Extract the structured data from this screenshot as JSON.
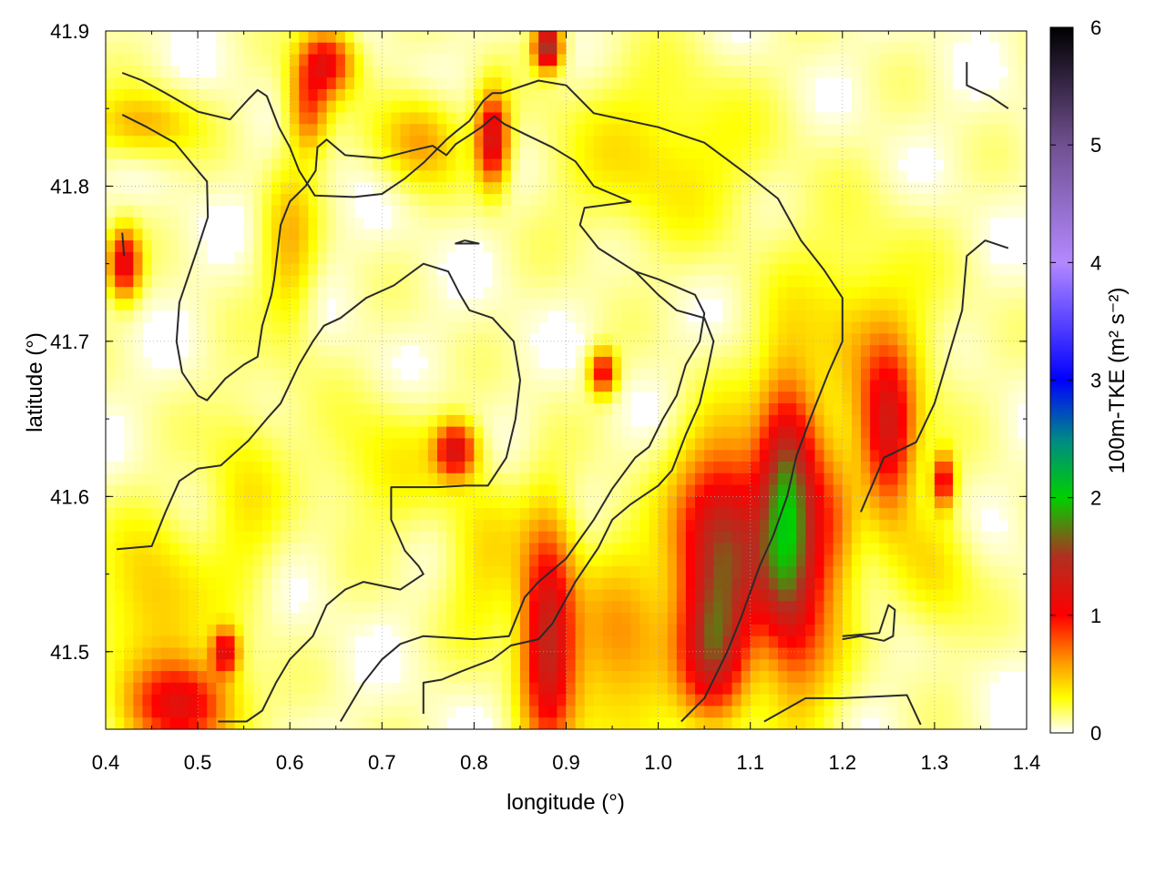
{
  "chart_data": {
    "type": "heatmap",
    "xlabel": "longitude (°)",
    "ylabel": "latitude (°)",
    "xlim": [
      0.4,
      1.4
    ],
    "ylim": [
      41.45,
      41.9
    ],
    "xticks": [
      "0.4",
      "0.5",
      "0.6",
      "0.7",
      "0.8",
      "0.9",
      "1.0",
      "1.1",
      "1.2",
      "1.3",
      "1.4"
    ],
    "yticks": [
      "41.5",
      "41.6",
      "41.7",
      "41.8",
      "41.9"
    ],
    "colorbar": {
      "label": "100m-TKE (m² s⁻²)",
      "range": [
        0,
        6
      ],
      "ticks": [
        "0",
        "1",
        "2",
        "3",
        "4",
        "5",
        "6"
      ],
      "stops": [
        {
          "v": 0.0,
          "color": "#ffffff"
        },
        {
          "v": 0.3,
          "color": "#ffff00"
        },
        {
          "v": 0.6,
          "color": "#ff9900"
        },
        {
          "v": 1.0,
          "color": "#ff0000"
        },
        {
          "v": 1.5,
          "color": "#b03020"
        },
        {
          "v": 2.0,
          "color": "#00d000"
        },
        {
          "v": 2.5,
          "color": "#008888"
        },
        {
          "v": 3.0,
          "color": "#0000ff"
        },
        {
          "v": 4.0,
          "color": "#b388ff"
        },
        {
          "v": 5.0,
          "color": "#705090"
        },
        {
          "v": 6.0,
          "color": "#000000"
        }
      ]
    },
    "grid": true,
    "blobs": [
      {
        "lon": 0.88,
        "lat": 41.51,
        "sx": 0.02,
        "sy": 0.05,
        "v": 1.3
      },
      {
        "lon": 1.07,
        "lat": 41.57,
        "sx": 0.035,
        "sy": 0.045,
        "v": 1.4
      },
      {
        "lon": 1.06,
        "lat": 41.5,
        "sx": 0.025,
        "sy": 0.03,
        "v": 1.1
      },
      {
        "lon": 1.14,
        "lat": 41.59,
        "sx": 0.022,
        "sy": 0.055,
        "v": 1.6
      },
      {
        "lon": 1.25,
        "lat": 41.64,
        "sx": 0.02,
        "sy": 0.035,
        "v": 1.1
      },
      {
        "lon": 1.31,
        "lat": 41.61,
        "sx": 0.008,
        "sy": 0.012,
        "v": 1.0
      },
      {
        "lon": 0.485,
        "lat": 41.465,
        "sx": 0.04,
        "sy": 0.02,
        "v": 1.0
      },
      {
        "lon": 0.45,
        "lat": 41.53,
        "sx": 0.04,
        "sy": 0.04,
        "v": 0.4
      },
      {
        "lon": 0.42,
        "lat": 41.75,
        "sx": 0.012,
        "sy": 0.015,
        "v": 1.1
      },
      {
        "lon": 0.64,
        "lat": 41.88,
        "sx": 0.02,
        "sy": 0.015,
        "v": 1.0
      },
      {
        "lon": 0.82,
        "lat": 41.83,
        "sx": 0.012,
        "sy": 0.02,
        "v": 1.2
      },
      {
        "lon": 0.78,
        "lat": 41.63,
        "sx": 0.015,
        "sy": 0.012,
        "v": 1.1
      },
      {
        "lon": 0.94,
        "lat": 41.68,
        "sx": 0.01,
        "sy": 0.01,
        "v": 1.0
      },
      {
        "lon": 0.88,
        "lat": 41.89,
        "sx": 0.01,
        "sy": 0.01,
        "v": 1.6
      },
      {
        "lon": 0.74,
        "lat": 41.83,
        "sx": 0.03,
        "sy": 0.02,
        "v": 0.5
      },
      {
        "lon": 0.44,
        "lat": 41.84,
        "sx": 0.04,
        "sy": 0.015,
        "v": 0.45
      },
      {
        "lon": 0.6,
        "lat": 41.76,
        "sx": 0.02,
        "sy": 0.04,
        "v": 0.4
      },
      {
        "lon": 1.22,
        "lat": 41.7,
        "sx": 0.06,
        "sy": 0.05,
        "v": 0.35
      },
      {
        "lon": 0.96,
        "lat": 41.5,
        "sx": 0.04,
        "sy": 0.05,
        "v": 0.5
      },
      {
        "lon": 1.16,
        "lat": 41.52,
        "sx": 0.03,
        "sy": 0.05,
        "v": 0.5
      },
      {
        "lon": 0.7,
        "lat": 41.62,
        "sx": 0.05,
        "sy": 0.03,
        "v": 0.25
      },
      {
        "lon": 1.0,
        "lat": 41.82,
        "sx": 0.08,
        "sy": 0.04,
        "v": 0.3
      },
      {
        "lon": 0.55,
        "lat": 41.6,
        "sx": 0.03,
        "sy": 0.05,
        "v": 0.25
      },
      {
        "lon": 1.3,
        "lat": 41.55,
        "sx": 0.03,
        "sy": 0.03,
        "v": 0.3
      },
      {
        "lon": 0.62,
        "lat": 41.85,
        "sx": 0.015,
        "sy": 0.02,
        "v": 0.7
      },
      {
        "lon": 0.53,
        "lat": 41.5,
        "sx": 0.01,
        "sy": 0.01,
        "v": 1.0
      },
      {
        "lon": 1.19,
        "lat": 41.58,
        "sx": 0.02,
        "sy": 0.03,
        "v": 0.5
      },
      {
        "lon": 0.81,
        "lat": 41.56,
        "sx": 0.03,
        "sy": 0.04,
        "v": 0.3
      }
    ],
    "contours": [
      [
        [
          0.418,
          41.873
        ],
        [
          0.44,
          41.868
        ],
        [
          0.465,
          41.86
        ],
        [
          0.5,
          41.848
        ],
        [
          0.535,
          41.843
        ],
        [
          0.555,
          41.856
        ],
        [
          0.565,
          41.862
        ],
        [
          0.575,
          41.858
        ],
        [
          0.588,
          41.838
        ],
        [
          0.6,
          41.825
        ],
        [
          0.61,
          41.81
        ],
        [
          0.627,
          41.794
        ],
        [
          0.67,
          41.793
        ],
        [
          0.7,
          41.795
        ],
        [
          0.725,
          41.805
        ],
        [
          0.745,
          41.815
        ],
        [
          0.77,
          41.83
        ],
        [
          0.78,
          41.835
        ],
        [
          0.795,
          41.842
        ],
        [
          0.81,
          41.855
        ],
        [
          0.82,
          41.86
        ],
        [
          0.83,
          41.86
        ],
        [
          0.87,
          41.868
        ],
        [
          0.9,
          41.865
        ],
        [
          0.93,
          41.847
        ],
        [
          1.0,
          41.838
        ],
        [
          1.05,
          41.828
        ],
        [
          1.1,
          41.806
        ],
        [
          1.13,
          41.792
        ],
        [
          1.155,
          41.765
        ],
        [
          1.18,
          41.746
        ],
        [
          1.2,
          41.728
        ],
        [
          1.2,
          41.7
        ],
        [
          1.185,
          41.68
        ],
        [
          1.165,
          41.65
        ],
        [
          1.15,
          41.626
        ],
        [
          1.14,
          41.6
        ],
        [
          1.125,
          41.575
        ],
        [
          1.11,
          41.555
        ],
        [
          1.09,
          41.522
        ],
        [
          1.075,
          41.5
        ],
        [
          1.05,
          41.47
        ],
        [
          1.025,
          41.455
        ]
      ],
      [
        [
          0.418,
          41.846
        ],
        [
          0.445,
          41.838
        ],
        [
          0.475,
          41.828
        ],
        [
          0.5,
          41.81
        ],
        [
          0.51,
          41.803
        ],
        [
          0.511,
          41.78
        ],
        [
          0.5,
          41.76
        ],
        [
          0.48,
          41.725
        ],
        [
          0.477,
          41.7
        ],
        [
          0.483,
          41.68
        ],
        [
          0.5,
          41.665
        ],
        [
          0.51,
          41.662
        ],
        [
          0.53,
          41.676
        ],
        [
          0.55,
          41.685
        ],
        [
          0.565,
          41.69
        ],
        [
          0.57,
          41.71
        ],
        [
          0.58,
          41.73
        ],
        [
          0.583,
          41.74
        ],
        [
          0.587,
          41.76
        ],
        [
          0.59,
          41.775
        ],
        [
          0.6,
          41.79
        ],
        [
          0.617,
          41.8
        ],
        [
          0.628,
          41.81
        ],
        [
          0.63,
          41.825
        ],
        [
          0.64,
          41.83
        ],
        [
          0.66,
          41.82
        ],
        [
          0.7,
          41.818
        ],
        [
          0.733,
          41.823
        ],
        [
          0.755,
          41.826
        ],
        [
          0.77,
          41.82
        ],
        [
          0.78,
          41.827
        ],
        [
          0.793,
          41.832
        ],
        [
          0.808,
          41.838
        ],
        [
          0.822,
          41.845
        ],
        [
          0.833,
          41.84
        ],
        [
          0.857,
          41.833
        ],
        [
          0.885,
          41.825
        ],
        [
          0.91,
          41.816
        ],
        [
          0.93,
          41.8
        ],
        [
          0.97,
          41.79
        ],
        [
          0.945,
          41.788
        ],
        [
          0.92,
          41.786
        ],
        [
          0.915,
          41.775
        ],
        [
          0.935,
          41.76
        ],
        [
          0.975,
          41.745
        ],
        [
          1.0,
          41.73
        ],
        [
          1.02,
          41.72
        ],
        [
          1.05,
          41.715
        ],
        [
          1.06,
          41.7
        ],
        [
          1.053,
          41.68
        ],
        [
          1.045,
          41.66
        ],
        [
          1.03,
          41.64
        ],
        [
          1.015,
          41.617
        ],
        [
          1.0,
          41.607
        ],
        [
          0.97,
          41.595
        ],
        [
          0.95,
          41.585
        ],
        [
          0.935,
          41.567
        ],
        [
          0.91,
          41.545
        ],
        [
          0.885,
          41.518
        ],
        [
          0.87,
          41.508
        ],
        [
          0.84,
          41.504
        ],
        [
          0.82,
          41.495
        ],
        [
          0.785,
          41.487
        ],
        [
          0.765,
          41.482
        ],
        [
          0.745,
          41.48
        ],
        [
          0.745,
          41.46
        ]
      ],
      [
        [
          0.412,
          41.566
        ],
        [
          0.45,
          41.568
        ],
        [
          0.465,
          41.59
        ],
        [
          0.48,
          41.61
        ],
        [
          0.5,
          41.618
        ],
        [
          0.525,
          41.62
        ],
        [
          0.555,
          41.636
        ],
        [
          0.575,
          41.65
        ],
        [
          0.59,
          41.66
        ],
        [
          0.61,
          41.685
        ],
        [
          0.625,
          41.7
        ],
        [
          0.637,
          41.71
        ],
        [
          0.655,
          41.715
        ],
        [
          0.683,
          41.728
        ],
        [
          0.713,
          41.736
        ],
        [
          0.745,
          41.75
        ],
        [
          0.772,
          41.745
        ],
        [
          0.785,
          41.73
        ],
        [
          0.795,
          41.72
        ],
        [
          0.82,
          41.715
        ],
        [
          0.843,
          41.7
        ],
        [
          0.85,
          41.675
        ],
        [
          0.845,
          41.65
        ],
        [
          0.835,
          41.625
        ],
        [
          0.815,
          41.607
        ],
        [
          0.79,
          41.607
        ],
        [
          0.76,
          41.606
        ],
        [
          0.73,
          41.606
        ],
        [
          0.71,
          41.606
        ],
        [
          0.71,
          41.585
        ],
        [
          0.725,
          41.565
        ],
        [
          0.74,
          41.555
        ],
        [
          0.745,
          41.55
        ],
        [
          0.72,
          41.54
        ],
        [
          0.68,
          41.545
        ],
        [
          0.66,
          41.54
        ],
        [
          0.64,
          41.53
        ],
        [
          0.625,
          41.51
        ],
        [
          0.6,
          41.495
        ],
        [
          0.585,
          41.48
        ],
        [
          0.57,
          41.462
        ],
        [
          0.553,
          41.455
        ],
        [
          0.522,
          41.455
        ]
      ],
      [
        [
          0.655,
          41.455
        ],
        [
          0.68,
          41.48
        ],
        [
          0.7,
          41.495
        ],
        [
          0.72,
          41.505
        ],
        [
          0.745,
          41.51
        ],
        [
          0.8,
          41.508
        ],
        [
          0.838,
          41.51
        ],
        [
          0.855,
          41.535
        ],
        [
          0.87,
          41.545
        ],
        [
          0.9,
          41.56
        ],
        [
          0.93,
          41.585
        ],
        [
          0.95,
          41.605
        ],
        [
          0.975,
          41.625
        ],
        [
          0.99,
          41.632
        ],
        [
          1.005,
          41.65
        ],
        [
          1.02,
          41.665
        ],
        [
          1.03,
          41.685
        ],
        [
          1.045,
          41.7
        ],
        [
          1.05,
          41.718
        ],
        [
          1.04,
          41.73
        ],
        [
          1.02,
          41.735
        ],
        [
          1.0,
          41.74
        ],
        [
          0.975,
          41.745
        ]
      ],
      [
        [
          0.79,
          41.765
        ],
        [
          0.805,
          41.763
        ],
        [
          0.78,
          41.763
        ],
        [
          0.79,
          41.765
        ]
      ],
      [
        [
          0.418,
          41.77
        ],
        [
          0.42,
          41.755
        ]
      ],
      [
        [
          1.115,
          41.455
        ],
        [
          1.13,
          41.46
        ],
        [
          1.16,
          41.47
        ],
        [
          1.2,
          41.47
        ],
        [
          1.27,
          41.472
        ],
        [
          1.285,
          41.453
        ]
      ],
      [
        [
          1.2,
          41.508
        ],
        [
          1.22,
          41.51
        ],
        [
          1.245,
          41.507
        ],
        [
          1.255,
          41.51
        ],
        [
          1.257,
          41.527
        ],
        [
          1.25,
          41.53
        ],
        [
          1.24,
          41.512
        ],
        [
          1.2,
          41.51
        ]
      ],
      [
        [
          1.22,
          41.59
        ],
        [
          1.245,
          41.625
        ],
        [
          1.28,
          41.635
        ],
        [
          1.3,
          41.66
        ],
        [
          1.32,
          41.7
        ],
        [
          1.33,
          41.72
        ],
        [
          1.335,
          41.755
        ],
        [
          1.355,
          41.765
        ],
        [
          1.38,
          41.76
        ]
      ],
      [
        [
          1.335,
          41.88
        ],
        [
          1.335,
          41.865
        ],
        [
          1.36,
          41.858
        ],
        [
          1.38,
          41.85
        ]
      ]
    ]
  }
}
